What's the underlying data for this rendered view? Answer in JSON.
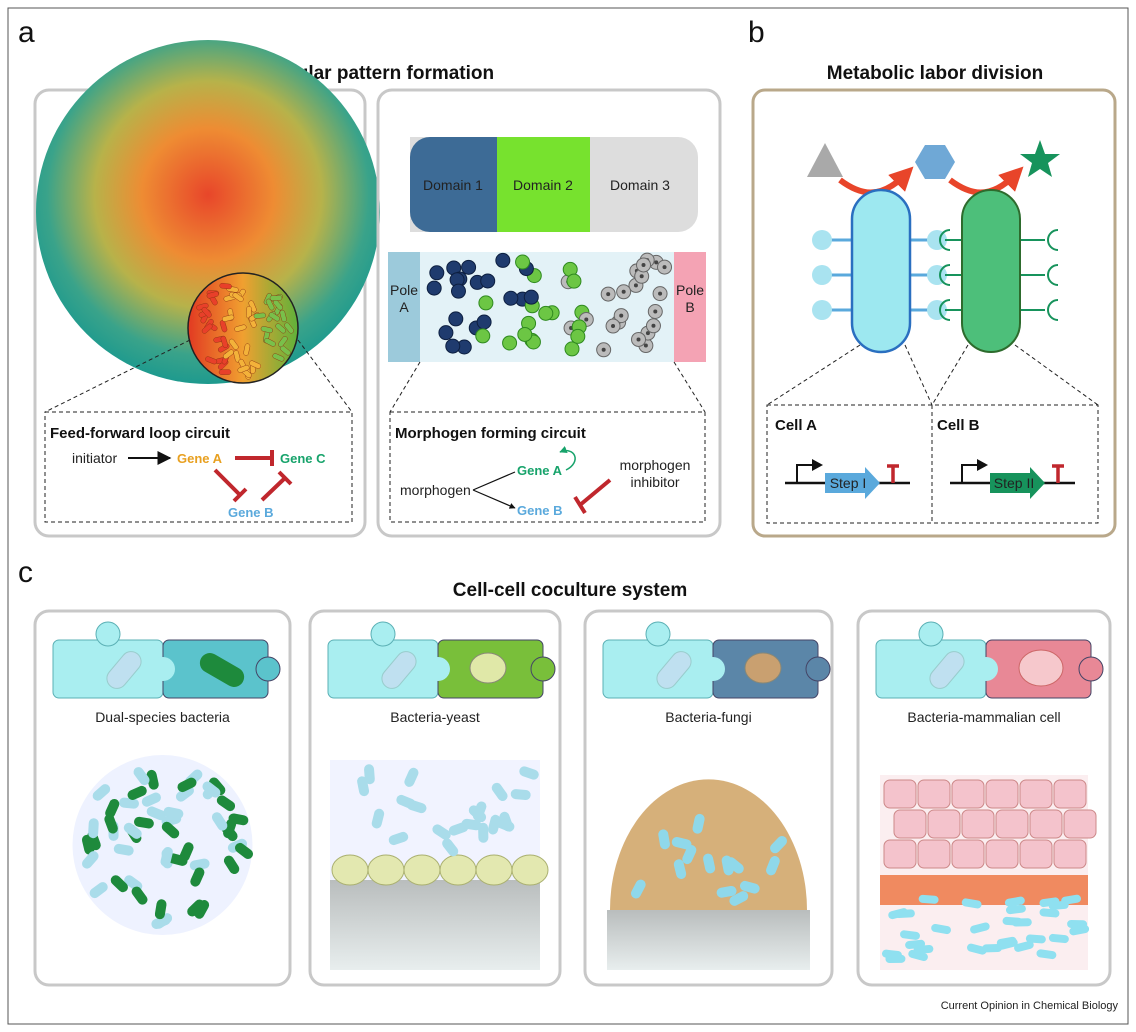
{
  "panels": {
    "a": {
      "letter": "a",
      "title": "Cellular pattern formation",
      "ffl": {
        "title": "Feed-forward loop circuit",
        "initiator": "initiator",
        "gene_a": "Gene A",
        "gene_b": "Gene B",
        "gene_c": "Gene C"
      },
      "domains": [
        "Domain 1",
        "Domain 2",
        "Domain 3"
      ],
      "pole_a": [
        "Pole",
        "A"
      ],
      "pole_b": [
        "Pole",
        "B"
      ],
      "morph": {
        "title": "Morphogen forming circuit",
        "morphogen": "morphogen",
        "gene_a": "Gene A",
        "gene_b": "Gene B",
        "inhibitor": [
          "morphogen",
          "inhibitor"
        ]
      }
    },
    "b": {
      "letter": "b",
      "title": "Metabolic labor division",
      "cell_a": "Cell A",
      "cell_b": "Cell B",
      "step_1": "Step I",
      "step_2": "Step II"
    },
    "c": {
      "letter": "c",
      "title": "Cell-cell coculture system",
      "systems": [
        "Dual-species bacteria",
        "Bacteria-yeast",
        "Bacteria-fungi",
        "Bacteria-mammalian cell"
      ]
    }
  },
  "credit": "Current Opinion in Chemical Biology",
  "colors": {
    "gene_a_orange": "#e8a020",
    "gene_b_blue": "#5aa9dc",
    "gene_c_green": "#17a36b",
    "inhibit_red": "#c0272d",
    "domain_1": "#3d6b96",
    "domain_2": "#77e22e",
    "domain_3": "#dddddd",
    "panel_b_border": "#b9a88a"
  }
}
